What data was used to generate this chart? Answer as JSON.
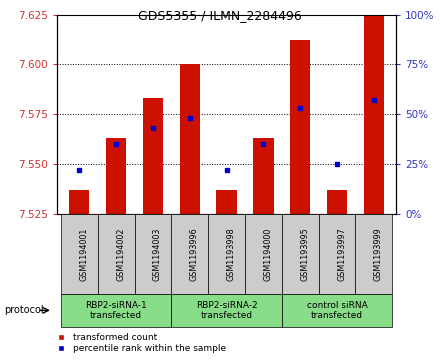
{
  "title": "GDS5355 / ILMN_2284496",
  "samples": [
    "GSM1194001",
    "GSM1194002",
    "GSM1194003",
    "GSM1193996",
    "GSM1193998",
    "GSM1194000",
    "GSM1193995",
    "GSM1193997",
    "GSM1193999"
  ],
  "bar_tops": [
    7.537,
    7.563,
    7.583,
    7.6,
    7.537,
    7.563,
    7.612,
    7.537,
    7.625
  ],
  "bar_bottom": 7.525,
  "percentile_ranks": [
    22,
    35,
    43,
    48,
    22,
    35,
    53,
    25,
    57
  ],
  "ylim_left": [
    7.525,
    7.625
  ],
  "ylim_right": [
    0,
    100
  ],
  "yticks_left": [
    7.525,
    7.55,
    7.575,
    7.6,
    7.625
  ],
  "yticks_right": [
    0,
    25,
    50,
    75,
    100
  ],
  "groups": [
    {
      "label": "RBP2-siRNA-1\ntransfected",
      "start": 0,
      "end": 3
    },
    {
      "label": "RBP2-siRNA-2\ntransfected",
      "start": 3,
      "end": 6
    },
    {
      "label": "control siRNA\ntransfected",
      "start": 6,
      "end": 9
    }
  ],
  "bar_color": "#cc1100",
  "dot_color": "#0000cc",
  "tick_color_left": "#cc3333",
  "tick_color_right": "#3333cc",
  "bar_width": 0.55,
  "group_box_color": "#88dd88",
  "sample_box_color": "#cccccc",
  "legend_items": [
    {
      "label": "transformed count",
      "color": "#cc1100"
    },
    {
      "label": "percentile rank within the sample",
      "color": "#0000cc"
    }
  ]
}
